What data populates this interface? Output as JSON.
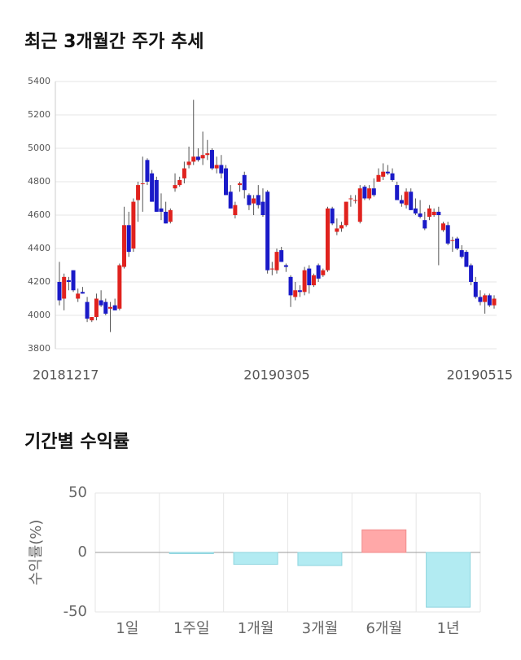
{
  "chart_data": [
    {
      "type": "candlestick",
      "title": "최근 3개월간 주가 추세",
      "categories": [
        "20181217",
        null,
        null,
        null,
        null,
        null,
        null,
        null,
        null,
        null,
        null,
        null,
        null,
        null,
        null,
        null,
        null,
        null,
        null,
        null,
        null,
        null,
        null,
        null,
        null,
        null,
        null,
        null,
        null,
        null,
        null,
        null,
        null,
        null,
        null,
        null,
        null,
        null,
        null,
        null,
        null,
        null,
        null,
        null,
        null,
        null,
        null,
        "20190305",
        null,
        null,
        null,
        null,
        null,
        null,
        null,
        null,
        null,
        null,
        null,
        null,
        null,
        null,
        null,
        null,
        null,
        null,
        null,
        null,
        null,
        null,
        null,
        null,
        null,
        null,
        null,
        null,
        null,
        null,
        null,
        null,
        null,
        null,
        null,
        null,
        null,
        null,
        null,
        null,
        null,
        null,
        null,
        null,
        null,
        null,
        "20190515"
      ],
      "ohlc": [
        [
          4200,
          4320,
          4060,
          4090
        ],
        [
          4100,
          4250,
          4030,
          4230
        ],
        [
          4210,
          4230,
          4150,
          4200
        ],
        [
          4270,
          4270,
          4140,
          4150
        ],
        [
          4100,
          4160,
          4080,
          4130
        ],
        [
          4140,
          4170,
          4130,
          4130
        ],
        [
          4080,
          4110,
          3960,
          3980
        ],
        [
          3970,
          3990,
          3960,
          3990
        ],
        [
          3990,
          4130,
          3970,
          4100
        ],
        [
          4090,
          4150,
          4050,
          4060
        ],
        [
          4080,
          4100,
          4000,
          4010
        ],
        [
          4040,
          4080,
          3900,
          4050
        ],
        [
          4060,
          4100,
          4030,
          4030
        ],
        [
          4040,
          4310,
          4030,
          4300
        ],
        [
          4290,
          4650,
          4280,
          4540
        ],
        [
          4540,
          4620,
          4350,
          4380
        ],
        [
          4400,
          4700,
          4380,
          4680
        ],
        [
          4690,
          4800,
          4560,
          4780
        ],
        [
          4790,
          4950,
          4620,
          4790
        ],
        [
          4930,
          4940,
          4780,
          4800
        ],
        [
          4850,
          4870,
          4680,
          4680
        ],
        [
          4810,
          4830,
          4620,
          4620
        ],
        [
          4640,
          4730,
          4570,
          4620
        ],
        [
          4620,
          4680,
          4550,
          4550
        ],
        [
          4560,
          4640,
          4550,
          4630
        ],
        [
          4760,
          4850,
          4740,
          4780
        ],
        [
          4780,
          4830,
          4770,
          4810
        ],
        [
          4820,
          4920,
          4790,
          4880
        ],
        [
          4900,
          5010,
          4880,
          4920
        ],
        [
          4920,
          5290,
          4900,
          4950
        ],
        [
          4950,
          5000,
          4920,
          4930
        ],
        [
          4940,
          5100,
          4900,
          4960
        ],
        [
          4960,
          5050,
          4930,
          4970
        ],
        [
          4990,
          5000,
          4870,
          4880
        ],
        [
          4880,
          4950,
          4850,
          4900
        ],
        [
          4900,
          4960,
          4820,
          4850
        ],
        [
          4880,
          4900,
          4720,
          4720
        ],
        [
          4740,
          4780,
          4640,
          4640
        ],
        [
          4600,
          4680,
          4580,
          4660
        ],
        [
          4780,
          4800,
          4740,
          4790
        ],
        [
          4840,
          4860,
          4700,
          4750
        ],
        [
          4720,
          4730,
          4630,
          4660
        ],
        [
          4670,
          4720,
          4600,
          4700
        ],
        [
          4720,
          4780,
          4640,
          4660
        ],
        [
          4680,
          4760,
          4590,
          4600
        ],
        [
          4740,
          4750,
          4250,
          4270
        ],
        [
          4280,
          4320,
          4240,
          4280
        ],
        [
          4270,
          4400,
          4250,
          4380
        ],
        [
          4390,
          4410,
          4320,
          4320
        ],
        [
          4300,
          4310,
          4260,
          4290
        ],
        [
          4230,
          4240,
          4050,
          4120
        ],
        [
          4110,
          4200,
          4090,
          4150
        ],
        [
          4150,
          4180,
          4110,
          4140
        ],
        [
          4140,
          4290,
          4120,
          4270
        ],
        [
          4280,
          4300,
          4130,
          4180
        ],
        [
          4180,
          4250,
          4170,
          4240
        ],
        [
          4300,
          4310,
          4200,
          4220
        ],
        [
          4240,
          4280,
          4230,
          4270
        ],
        [
          4270,
          4650,
          4260,
          4640
        ],
        [
          4640,
          4650,
          4540,
          4550
        ],
        [
          4500,
          4580,
          4480,
          4520
        ],
        [
          4520,
          4560,
          4500,
          4540
        ],
        [
          4540,
          4680,
          4530,
          4680
        ],
        [
          4700,
          4720,
          4650,
          4700
        ],
        [
          4690,
          4720,
          4670,
          4690
        ],
        [
          4560,
          4780,
          4550,
          4760
        ],
        [
          4770,
          4780,
          4690,
          4700
        ],
        [
          4700,
          4780,
          4690,
          4760
        ],
        [
          4760,
          4820,
          4710,
          4720
        ],
        [
          4800,
          4880,
          4800,
          4840
        ],
        [
          4830,
          4910,
          4810,
          4860
        ],
        [
          4860,
          4900,
          4840,
          4850
        ],
        [
          4850,
          4880,
          4800,
          4810
        ],
        [
          4780,
          4800,
          4690,
          4690
        ],
        [
          4690,
          4720,
          4650,
          4670
        ],
        [
          4660,
          4760,
          4640,
          4740
        ],
        [
          4740,
          4760,
          4630,
          4630
        ],
        [
          4640,
          4700,
          4600,
          4610
        ],
        [
          4610,
          4690,
          4580,
          4590
        ],
        [
          4570,
          4620,
          4510,
          4520
        ],
        [
          4590,
          4660,
          4570,
          4640
        ],
        [
          4600,
          4640,
          4590,
          4620
        ],
        [
          4620,
          4650,
          4300,
          4600
        ],
        [
          4510,
          4560,
          4500,
          4550
        ],
        [
          4540,
          4560,
          4420,
          4430
        ],
        [
          4450,
          4470,
          4380,
          4450
        ],
        [
          4460,
          4470,
          4390,
          4400
        ],
        [
          4390,
          4420,
          4340,
          4350
        ],
        [
          4380,
          4390,
          4290,
          4290
        ],
        [
          4300,
          4310,
          4180,
          4200
        ],
        [
          4200,
          4230,
          4100,
          4110
        ],
        [
          4110,
          4150,
          4060,
          4080
        ],
        [
          4080,
          4130,
          4010,
          4120
        ],
        [
          4120,
          4130,
          4050,
          4060
        ],
        [
          4060,
          4120,
          4040,
          4100
        ]
      ],
      "up_color": "#e0221e",
      "down_color": "#1a1ac8",
      "ylim": [
        3800,
        5400
      ],
      "yticks": [
        3800,
        4000,
        4200,
        4400,
        4600,
        4800,
        5000,
        5200,
        5400
      ],
      "grid": true
    },
    {
      "type": "bar",
      "title": "기간별 수익률",
      "y_label": "수익률(%)",
      "categories": [
        "1일",
        "1주일",
        "1개월",
        "3개월",
        "6개월",
        "1년"
      ],
      "values": [
        0,
        -1,
        -10,
        -11,
        19,
        -46
      ],
      "positive_color": "#ffa8a8",
      "negative_color": "#b2ebf2",
      "ylim": [
        -50,
        50
      ],
      "yticks": [
        -50,
        0,
        50
      ],
      "grid": true
    }
  ]
}
